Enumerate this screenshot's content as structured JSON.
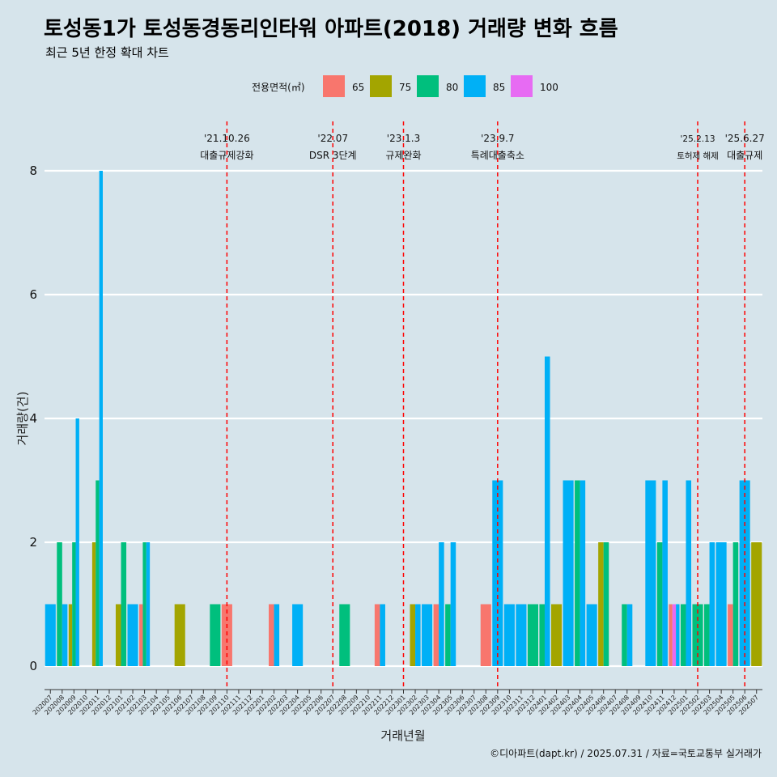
{
  "title": "토성동1가 토성동경동리인타워 아파트(2018) 거래량 변화 흐름",
  "subtitle": "최근 5년 한정 확대 차트",
  "caption": "©디아파트(dapt.kr) / 2025.07.31 / 자료=국토교통부 실거래가",
  "colors": {
    "background": "#d6e4eb",
    "65": "#f8766d",
    "75": "#a3a500",
    "80": "#00bf7d",
    "85": "#00b0f6",
    "100": "#e76bf3",
    "vline": "#ff0000"
  },
  "chart_data": {
    "type": "bar",
    "xlabel": "거래년월",
    "ylabel": "거래량(건)",
    "ylim": [
      0,
      8
    ],
    "yticks": [
      0,
      2,
      4,
      6,
      8
    ],
    "legend": {
      "title": "전용면적(㎡)",
      "position": "top",
      "items": [
        "65",
        "75",
        "80",
        "85",
        "100"
      ]
    },
    "categories": [
      "202007",
      "202008",
      "202009",
      "202010",
      "202011",
      "202012",
      "202101",
      "202102",
      "202103",
      "202104",
      "202105",
      "202106",
      "202107",
      "202108",
      "202109",
      "202110",
      "202111",
      "202112",
      "202201",
      "202202",
      "202203",
      "202204",
      "202205",
      "202206",
      "202207",
      "202208",
      "202209",
      "202210",
      "202211",
      "202212",
      "202301",
      "202302",
      "202303",
      "202304",
      "202305",
      "202306",
      "202307",
      "202308",
      "202309",
      "202310",
      "202311",
      "202312",
      "202401",
      "202402",
      "202403",
      "202404",
      "202405",
      "202406",
      "202407",
      "202408",
      "202409",
      "202410",
      "202411",
      "202412",
      "202501",
      "202502",
      "202503",
      "202504",
      "202505",
      "202506",
      "202507"
    ],
    "bars": [
      {
        "month": "202007",
        "items": [
          {
            "area": "85",
            "value": 1
          }
        ]
      },
      {
        "month": "202008",
        "items": [
          {
            "area": "80",
            "value": 2
          },
          {
            "area": "85",
            "value": 1
          }
        ]
      },
      {
        "month": "202009",
        "items": [
          {
            "area": "75",
            "value": 1
          },
          {
            "area": "80",
            "value": 2
          },
          {
            "area": "85",
            "value": 4
          }
        ]
      },
      {
        "month": "202011",
        "items": [
          {
            "area": "75",
            "value": 2
          },
          {
            "area": "80",
            "value": 3
          },
          {
            "area": "85",
            "value": 8
          }
        ]
      },
      {
        "month": "202101",
        "items": [
          {
            "area": "75",
            "value": 1
          },
          {
            "area": "80",
            "value": 2
          }
        ]
      },
      {
        "month": "202102",
        "items": [
          {
            "area": "85",
            "value": 1
          }
        ]
      },
      {
        "month": "202103",
        "items": [
          {
            "area": "65",
            "value": 1
          },
          {
            "area": "80",
            "value": 2
          },
          {
            "area": "85",
            "value": 2
          }
        ]
      },
      {
        "month": "202106",
        "items": [
          {
            "area": "75",
            "value": 1
          }
        ]
      },
      {
        "month": "202109",
        "items": [
          {
            "area": "80",
            "value": 1
          }
        ]
      },
      {
        "month": "202110",
        "items": [
          {
            "area": "65",
            "value": 1
          }
        ]
      },
      {
        "month": "202202",
        "items": [
          {
            "area": "65",
            "value": 1
          },
          {
            "area": "85",
            "value": 1
          }
        ]
      },
      {
        "month": "202204",
        "items": [
          {
            "area": "85",
            "value": 1
          }
        ]
      },
      {
        "month": "202208",
        "items": [
          {
            "area": "80",
            "value": 1
          }
        ]
      },
      {
        "month": "202211",
        "items": [
          {
            "area": "65",
            "value": 1
          },
          {
            "area": "85",
            "value": 1
          }
        ]
      },
      {
        "month": "202302",
        "items": [
          {
            "area": "75",
            "value": 1
          },
          {
            "area": "85",
            "value": 1
          }
        ]
      },
      {
        "month": "202303",
        "items": [
          {
            "area": "85",
            "value": 1
          }
        ]
      },
      {
        "month": "202304",
        "items": [
          {
            "area": "65",
            "value": 1
          },
          {
            "area": "85",
            "value": 2
          }
        ]
      },
      {
        "month": "202305",
        "items": [
          {
            "area": "80",
            "value": 1
          },
          {
            "area": "85",
            "value": 2
          }
        ]
      },
      {
        "month": "202308",
        "items": [
          {
            "area": "65",
            "value": 1
          }
        ]
      },
      {
        "month": "202309",
        "items": [
          {
            "area": "85",
            "value": 3
          }
        ]
      },
      {
        "month": "202310",
        "items": [
          {
            "area": "85",
            "value": 1
          }
        ]
      },
      {
        "month": "202311",
        "items": [
          {
            "area": "85",
            "value": 1
          }
        ]
      },
      {
        "month": "202312",
        "items": [
          {
            "area": "80",
            "value": 1
          }
        ]
      },
      {
        "month": "202401",
        "items": [
          {
            "area": "80",
            "value": 1
          },
          {
            "area": "85",
            "value": 5
          }
        ]
      },
      {
        "month": "202402",
        "items": [
          {
            "area": "75",
            "value": 1
          }
        ]
      },
      {
        "month": "202403",
        "items": [
          {
            "area": "85",
            "value": 3
          }
        ]
      },
      {
        "month": "202404",
        "items": [
          {
            "area": "80",
            "value": 3
          },
          {
            "area": "85",
            "value": 3
          }
        ]
      },
      {
        "month": "202405",
        "items": [
          {
            "area": "85",
            "value": 1
          }
        ]
      },
      {
        "month": "202406",
        "items": [
          {
            "area": "75",
            "value": 2
          },
          {
            "area": "80",
            "value": 2
          }
        ]
      },
      {
        "month": "202408",
        "items": [
          {
            "area": "80",
            "value": 1
          },
          {
            "area": "85",
            "value": 1
          }
        ]
      },
      {
        "month": "202410",
        "items": [
          {
            "area": "85",
            "value": 3
          }
        ]
      },
      {
        "month": "202411",
        "items": [
          {
            "area": "80",
            "value": 2
          },
          {
            "area": "85",
            "value": 3
          }
        ]
      },
      {
        "month": "202412",
        "items": [
          {
            "area": "65",
            "value": 1
          },
          {
            "area": "100",
            "value": 1
          },
          {
            "area": "85",
            "value": 1
          }
        ]
      },
      {
        "month": "202501",
        "items": [
          {
            "area": "80",
            "value": 1
          },
          {
            "area": "85",
            "value": 3
          }
        ]
      },
      {
        "month": "202502",
        "items": [
          {
            "area": "80",
            "value": 1
          }
        ]
      },
      {
        "month": "202503",
        "items": [
          {
            "area": "80",
            "value": 1
          },
          {
            "area": "85",
            "value": 2
          }
        ]
      },
      {
        "month": "202504",
        "items": [
          {
            "area": "85",
            "value": 2
          }
        ]
      },
      {
        "month": "202505",
        "items": [
          {
            "area": "65",
            "value": 1
          },
          {
            "area": "80",
            "value": 2
          }
        ]
      },
      {
        "month": "202506",
        "items": [
          {
            "area": "85",
            "value": 3
          }
        ]
      },
      {
        "month": "202507",
        "items": [
          {
            "area": "75",
            "value": 2
          }
        ]
      }
    ],
    "annotations": [
      {
        "month": "202110",
        "date": "'21.10.26",
        "text": "대출규제강화"
      },
      {
        "month": "202207",
        "date": "'22.07",
        "text": "DSR 3단계"
      },
      {
        "month": "202301",
        "date": "'23.1.3",
        "text": "규제완화"
      },
      {
        "month": "202309",
        "date": "'23.9.7",
        "text": "특례대출축소"
      },
      {
        "month": "202502",
        "date": "'25.2.13",
        "text": "토허제 해제",
        "small": true
      },
      {
        "month": "202506",
        "date": "'25.6.27",
        "text": "대출규제"
      }
    ]
  }
}
